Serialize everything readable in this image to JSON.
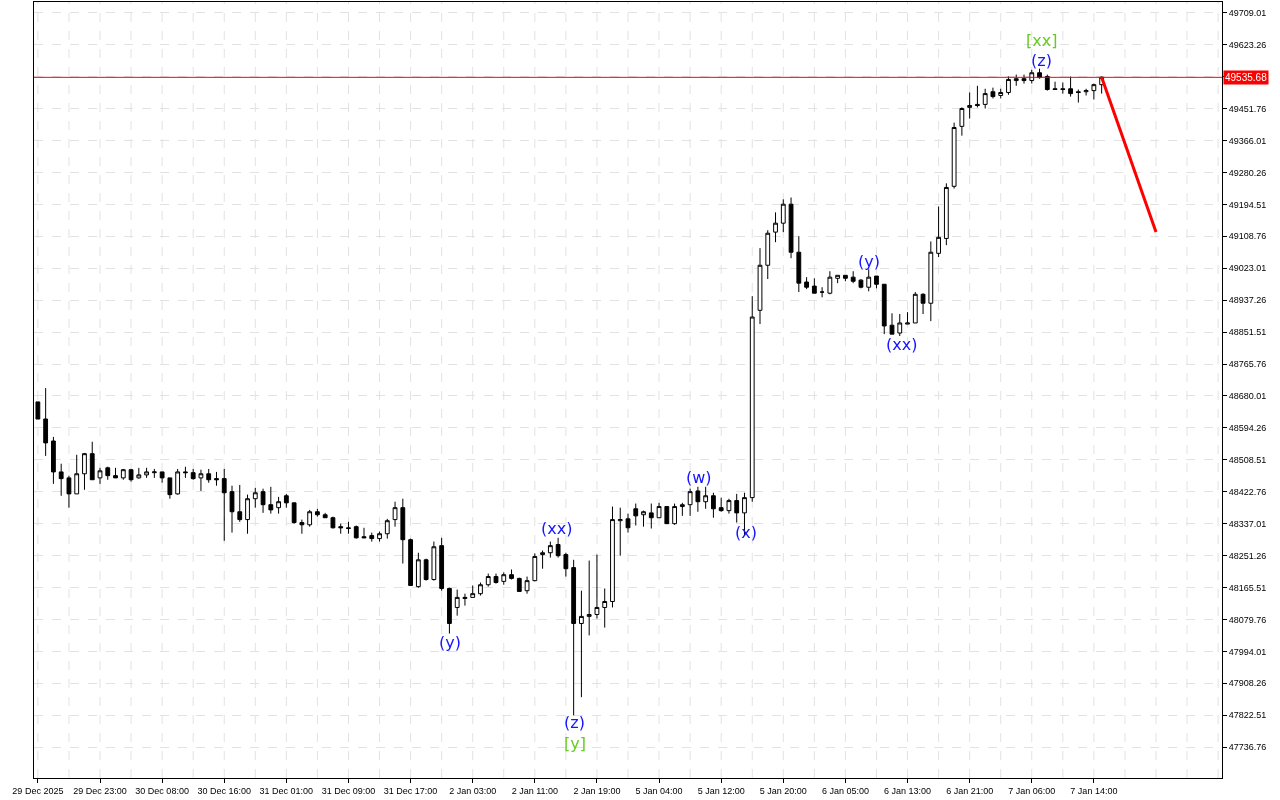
{
  "chart_data": {
    "type": "candlestick",
    "color": "#000000",
    "grid": true,
    "categories": [
      "29 Dec 2025",
      null,
      null,
      null,
      null,
      null,
      null,
      null,
      "29 Dec 23:00",
      null,
      null,
      null,
      null,
      null,
      null,
      null,
      "30 Dec 08:00",
      null,
      null,
      null,
      null,
      null,
      null,
      null,
      "30 Dec 16:00",
      null,
      null,
      null,
      null,
      null,
      null,
      null,
      "31 Dec 01:00",
      null,
      null,
      null,
      null,
      null,
      null,
      null,
      "31 Dec 09:00",
      null,
      null,
      null,
      null,
      null,
      null,
      null,
      "31 Dec 17:00",
      null,
      null,
      null,
      null,
      null,
      null,
      null,
      "2 Jan 03:00",
      null,
      null,
      null,
      null,
      null,
      null,
      null,
      "2 Jan 11:00",
      null,
      null,
      null,
      null,
      null,
      null,
      null,
      "2 Jan 19:00",
      null,
      null,
      null,
      null,
      null,
      null,
      null,
      "5 Jan 04:00",
      null,
      null,
      null,
      null,
      null,
      null,
      null,
      "5 Jan 12:00",
      null,
      null,
      null,
      null,
      null,
      null,
      null,
      "5 Jan 20:00",
      null,
      null,
      null,
      null,
      null,
      null,
      null,
      "6 Jan 05:00",
      null,
      null,
      null,
      null,
      null,
      null,
      null,
      "6 Jan 13:00",
      null,
      null,
      null,
      null,
      null,
      null,
      null,
      "6 Jan 21:00",
      null,
      null,
      null,
      null,
      null,
      null,
      null,
      "7 Jan 06:00",
      null,
      null,
      null,
      null,
      null,
      null,
      null,
      "7 Jan 14:00",
      null,
      null,
      null,
      null,
      null,
      null,
      null,
      null,
      null,
      null,
      null,
      null,
      null,
      null,
      null,
      null
    ],
    "ohlc": [
      [
        48664,
        48664,
        48618,
        48618
      ],
      [
        48618,
        48701,
        48519,
        48554
      ],
      [
        48559,
        48570,
        48444,
        48476
      ],
      [
        48476,
        48498,
        48412,
        48458
      ],
      [
        48460,
        48466,
        48380,
        48417
      ],
      [
        48417,
        48522,
        48417,
        48471
      ],
      [
        48471,
        48527,
        48428,
        48525
      ],
      [
        48525,
        48557,
        48455,
        48455
      ],
      [
        48460,
        48487,
        48444,
        48479
      ],
      [
        48487,
        48490,
        48455,
        48466
      ],
      [
        48466,
        48487,
        48460,
        48460
      ],
      [
        48460,
        48484,
        48455,
        48482
      ],
      [
        48482,
        48484,
        48450,
        48455
      ],
      [
        48460,
        48487,
        48458,
        48468
      ],
      [
        48468,
        48487,
        48460,
        48476
      ],
      [
        48474,
        48484,
        48460,
        48476
      ],
      [
        48476,
        48476,
        48447,
        48460
      ],
      [
        48460,
        48460,
        48404,
        48415
      ],
      [
        48417,
        48484,
        48415,
        48476
      ],
      [
        48476,
        48490,
        48460,
        48474
      ],
      [
        48474,
        48484,
        48455,
        48458
      ],
      [
        48460,
        48482,
        48425,
        48471
      ],
      [
        48471,
        48484,
        48447,
        48455
      ],
      [
        48458,
        48476,
        48439,
        48455
      ],
      [
        48458,
        48484,
        48291,
        48420
      ],
      [
        48423,
        48439,
        48313,
        48369
      ],
      [
        48369,
        48441,
        48342,
        48348
      ],
      [
        48348,
        48415,
        48310,
        48404
      ],
      [
        48404,
        48433,
        48380,
        48420
      ],
      [
        48423,
        48431,
        48366,
        48388
      ],
      [
        48388,
        48436,
        48364,
        48374
      ],
      [
        48380,
        48409,
        48364,
        48396
      ],
      [
        48412,
        48417,
        48380,
        48393
      ],
      [
        48393,
        48393,
        48337,
        48340
      ],
      [
        48340,
        48348,
        48310,
        48334
      ],
      [
        48334,
        48374,
        48329,
        48369
      ],
      [
        48369,
        48377,
        48356,
        48361
      ],
      [
        48361,
        48366,
        48353,
        48353
      ],
      [
        48353,
        48356,
        48324,
        48326
      ],
      [
        48329,
        48337,
        48310,
        48326
      ],
      [
        48326,
        48342,
        48310,
        48324
      ],
      [
        48329,
        48332,
        48297,
        48299
      ],
      [
        48302,
        48326,
        48299,
        48299
      ],
      [
        48305,
        48313,
        48289,
        48297
      ],
      [
        48297,
        48316,
        48289,
        48310
      ],
      [
        48310,
        48350,
        48297,
        48345
      ],
      [
        48348,
        48396,
        48329,
        48380
      ],
      [
        48380,
        48404,
        48230,
        48294
      ],
      [
        48294,
        48297,
        48171,
        48171
      ],
      [
        48168,
        48259,
        48165,
        48240
      ],
      [
        48240,
        48243,
        48184,
        48187
      ],
      [
        48187,
        48289,
        48184,
        48275
      ],
      [
        48278,
        48299,
        48157,
        48163
      ],
      [
        48163,
        48165,
        48042,
        48069
      ],
      [
        48112,
        48160,
        48090,
        48139
      ],
      [
        48136,
        48149,
        48117,
        48139
      ],
      [
        48139,
        48171,
        48139,
        48149
      ],
      [
        48149,
        48179,
        48144,
        48173
      ],
      [
        48173,
        48203,
        48168,
        48195
      ],
      [
        48195,
        48203,
        48176,
        48179
      ],
      [
        48182,
        48206,
        48173,
        48200
      ],
      [
        48200,
        48214,
        48187,
        48190
      ],
      [
        48190,
        48192,
        48155,
        48155
      ],
      [
        48157,
        48195,
        48149,
        48184
      ],
      [
        48184,
        48257,
        48182,
        48249
      ],
      [
        48254,
        48265,
        48216,
        48259
      ],
      [
        48259,
        48289,
        48246,
        48278
      ],
      [
        48281,
        48299,
        48246,
        48251
      ],
      [
        48254,
        48259,
        48195,
        48216
      ],
      [
        48219,
        48240,
        47822,
        48069
      ],
      [
        48069,
        48157,
        47871,
        48088
      ],
      [
        48088,
        48238,
        48037,
        48093
      ],
      [
        48093,
        48254,
        48082,
        48112
      ],
      [
        48112,
        48163,
        48058,
        48128
      ],
      [
        48128,
        48383,
        48112,
        48348
      ],
      [
        48345,
        48380,
        48251,
        48348
      ],
      [
        48350,
        48364,
        48313,
        48326
      ],
      [
        48377,
        48391,
        48332,
        48358
      ],
      [
        48361,
        48372,
        48329,
        48369
      ],
      [
        48366,
        48391,
        48324,
        48353
      ],
      [
        48353,
        48393,
        48353,
        48383
      ],
      [
        48383,
        48383,
        48337,
        48337
      ],
      [
        48337,
        48391,
        48334,
        48383
      ],
      [
        48383,
        48393,
        48358,
        48388
      ],
      [
        48388,
        48431,
        48358,
        48423
      ],
      [
        48425,
        48436,
        48369,
        48396
      ],
      [
        48396,
        48436,
        48377,
        48412
      ],
      [
        48412,
        48420,
        48353,
        48377
      ],
      [
        48380,
        48407,
        48369,
        48372
      ],
      [
        48372,
        48404,
        48364,
        48399
      ],
      [
        48399,
        48417,
        48340,
        48366
      ],
      [
        48366,
        48420,
        48305,
        48407
      ],
      [
        48407,
        48948,
        48396,
        48892
      ],
      [
        48910,
        49077,
        48873,
        49031
      ],
      [
        49031,
        49125,
        48994,
        49117
      ],
      [
        49120,
        49173,
        49093,
        49144
      ],
      [
        49144,
        49208,
        49120,
        49195
      ],
      [
        49195,
        49213,
        49050,
        49066
      ],
      [
        49066,
        49109,
        48959,
        48983
      ],
      [
        48986,
        48999,
        48967,
        48972
      ],
      [
        48975,
        48996,
        48956,
        48956
      ],
      [
        48959,
        48972,
        48945,
        48959
      ],
      [
        48956,
        49015,
        48953,
        48999
      ],
      [
        48996,
        49004,
        48983,
        49004
      ],
      [
        49004,
        49004,
        48988,
        48996
      ],
      [
        48999,
        49015,
        48983,
        48988
      ],
      [
        48991,
        48994,
        48969,
        48972
      ],
      [
        48972,
        49020,
        48961,
        48999
      ],
      [
        49002,
        49002,
        48969,
        48980
      ],
      [
        48980,
        48980,
        48846,
        48868
      ],
      [
        48870,
        48902,
        48846,
        48846
      ],
      [
        48849,
        48900,
        48841,
        48876
      ],
      [
        48873,
        48905,
        48873,
        48876
      ],
      [
        48876,
        48959,
        48876,
        48953
      ],
      [
        48953,
        48956,
        48900,
        48929
      ],
      [
        48929,
        49095,
        48881,
        49066
      ],
      [
        49063,
        49189,
        49053,
        49106
      ],
      [
        49103,
        49251,
        49085,
        49240
      ],
      [
        49243,
        49414,
        49237,
        49401
      ],
      [
        49404,
        49455,
        49379,
        49452
      ],
      [
        49455,
        49495,
        49425,
        49460
      ],
      [
        49463,
        49513,
        49455,
        49460
      ],
      [
        49463,
        49505,
        49452,
        49492
      ],
      [
        49497,
        49508,
        49479,
        49484
      ],
      [
        49487,
        49505,
        49479,
        49495
      ],
      [
        49495,
        49538,
        49489,
        49530
      ],
      [
        49527,
        49543,
        49513,
        49532
      ],
      [
        49532,
        49543,
        49519,
        49527
      ],
      [
        49527,
        49556,
        49519,
        49548
      ],
      [
        49548,
        49559,
        49532,
        49535
      ],
      [
        49538,
        49543,
        49500,
        49503
      ],
      [
        49505,
        49524,
        49503,
        49503
      ],
      [
        49505,
        49522,
        49492,
        49503
      ],
      [
        49505,
        49538,
        49484,
        49492
      ],
      [
        49497,
        49503,
        49468,
        49495
      ],
      [
        49497,
        49505,
        49487,
        49500
      ],
      [
        49500,
        49519,
        49476,
        49516
      ],
      [
        49516,
        49538,
        49492,
        49536
      ],
      null,
      null,
      null,
      null,
      null,
      null,
      null,
      null,
      null,
      null,
      null,
      null,
      null,
      null,
      null
    ],
    "series": [
      {
        "type": "line",
        "color": "#ff0000",
        "values": [
          null,
          null,
          null,
          null,
          null,
          null,
          null,
          null,
          null,
          null,
          null,
          null,
          null,
          null,
          null,
          null,
          null,
          null,
          null,
          null,
          null,
          null,
          null,
          null,
          null,
          null,
          null,
          null,
          null,
          null,
          null,
          null,
          null,
          null,
          null,
          null,
          null,
          null,
          null,
          null,
          null,
          null,
          null,
          null,
          null,
          null,
          null,
          null,
          null,
          null,
          null,
          null,
          null,
          null,
          null,
          null,
          null,
          null,
          null,
          null,
          null,
          null,
          null,
          null,
          null,
          null,
          null,
          null,
          null,
          null,
          null,
          null,
          null,
          null,
          null,
          null,
          null,
          null,
          null,
          null,
          null,
          null,
          null,
          null,
          null,
          null,
          null,
          null,
          null,
          null,
          null,
          null,
          null,
          null,
          null,
          null,
          null,
          null,
          null,
          null,
          null,
          null,
          null,
          null,
          null,
          null,
          null,
          null,
          null,
          null,
          null,
          null,
          null,
          null,
          null,
          null,
          null,
          null,
          null,
          null,
          null,
          null,
          null,
          null,
          null,
          null,
          null,
          null,
          null,
          null,
          null,
          null,
          null,
          null,
          null,
          null,
          null,
          49536,
          null,
          null,
          null,
          null,
          null,
          null,
          49120,
          null,
          null,
          null,
          null,
          null,
          null,
          null,
          null
        ]
      }
    ],
    "ylim": [
      47654,
      49738
    ],
    "yticks": [
      47736.76,
      47822.51,
      47908.26,
      47994.01,
      48079.76,
      48165.51,
      48251.26,
      48337.01,
      48422.76,
      48508.51,
      48594.26,
      48680.01,
      48765.76,
      48851.51,
      48937.26,
      49023.01,
      49108.76,
      49194.51,
      49280.26,
      49366.01,
      49451.76,
      {
        "value": 49537.51,
        "label": null
      },
      49623.26,
      49709.01
    ],
    "ref_lines": [
      {
        "axis": "y",
        "value": 49535.68,
        "label": "49535.68",
        "color": "#ff0000"
      }
    ],
    "annotations": [
      "(y)",
      "(xx)",
      "(z)",
      "[y]",
      "(w)",
      "(x)",
      "(y)",
      "(xx)",
      "[xx]",
      "(z)"
    ]
  }
}
